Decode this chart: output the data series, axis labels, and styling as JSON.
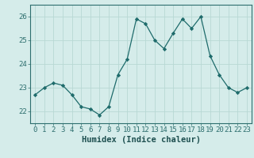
{
  "x": [
    0,
    1,
    2,
    3,
    4,
    5,
    6,
    7,
    8,
    9,
    10,
    11,
    12,
    13,
    14,
    15,
    16,
    17,
    18,
    19,
    20,
    21,
    22,
    23
  ],
  "y": [
    22.7,
    23.0,
    23.2,
    23.1,
    22.7,
    22.2,
    22.1,
    21.85,
    22.2,
    23.55,
    24.2,
    25.9,
    25.7,
    25.0,
    24.65,
    25.3,
    25.9,
    25.5,
    26.0,
    24.35,
    23.55,
    23.0,
    22.8,
    23.0
  ],
  "line_color": "#1e6b6b",
  "marker": "D",
  "marker_size": 2.2,
  "bg_color": "#d5ecea",
  "grid_color": "#b8d8d4",
  "xlabel": "Humidex (Indice chaleur)",
  "xlabel_fontsize": 7.5,
  "tick_fontsize": 6.5,
  "ylim": [
    21.5,
    26.5
  ],
  "yticks": [
    22,
    23,
    24,
    25,
    26
  ],
  "xticks": [
    0,
    1,
    2,
    3,
    4,
    5,
    6,
    7,
    8,
    9,
    10,
    11,
    12,
    13,
    14,
    15,
    16,
    17,
    18,
    19,
    20,
    21,
    22,
    23
  ],
  "spine_color": "#2d6e6e",
  "tick_color": "#2d6e6e",
  "label_color": "#1e5050"
}
